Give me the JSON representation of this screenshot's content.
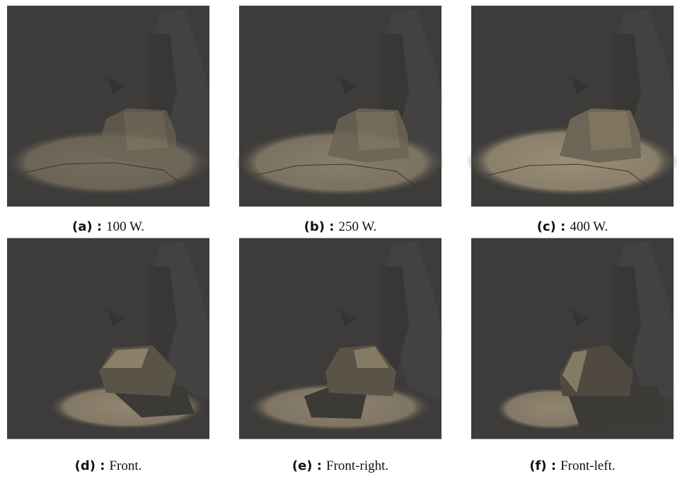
{
  "figure": {
    "panels": [
      {
        "label": "(a) :",
        "caption": "100 W."
      },
      {
        "label": "(b) :",
        "caption": "250 W."
      },
      {
        "label": "(c) :",
        "caption": "400 W."
      },
      {
        "label": "(d) :",
        "caption": "Front."
      },
      {
        "label": "(e) :",
        "caption": "Front-right."
      },
      {
        "label": "(f) :",
        "caption": "Front-left."
      }
    ]
  }
}
